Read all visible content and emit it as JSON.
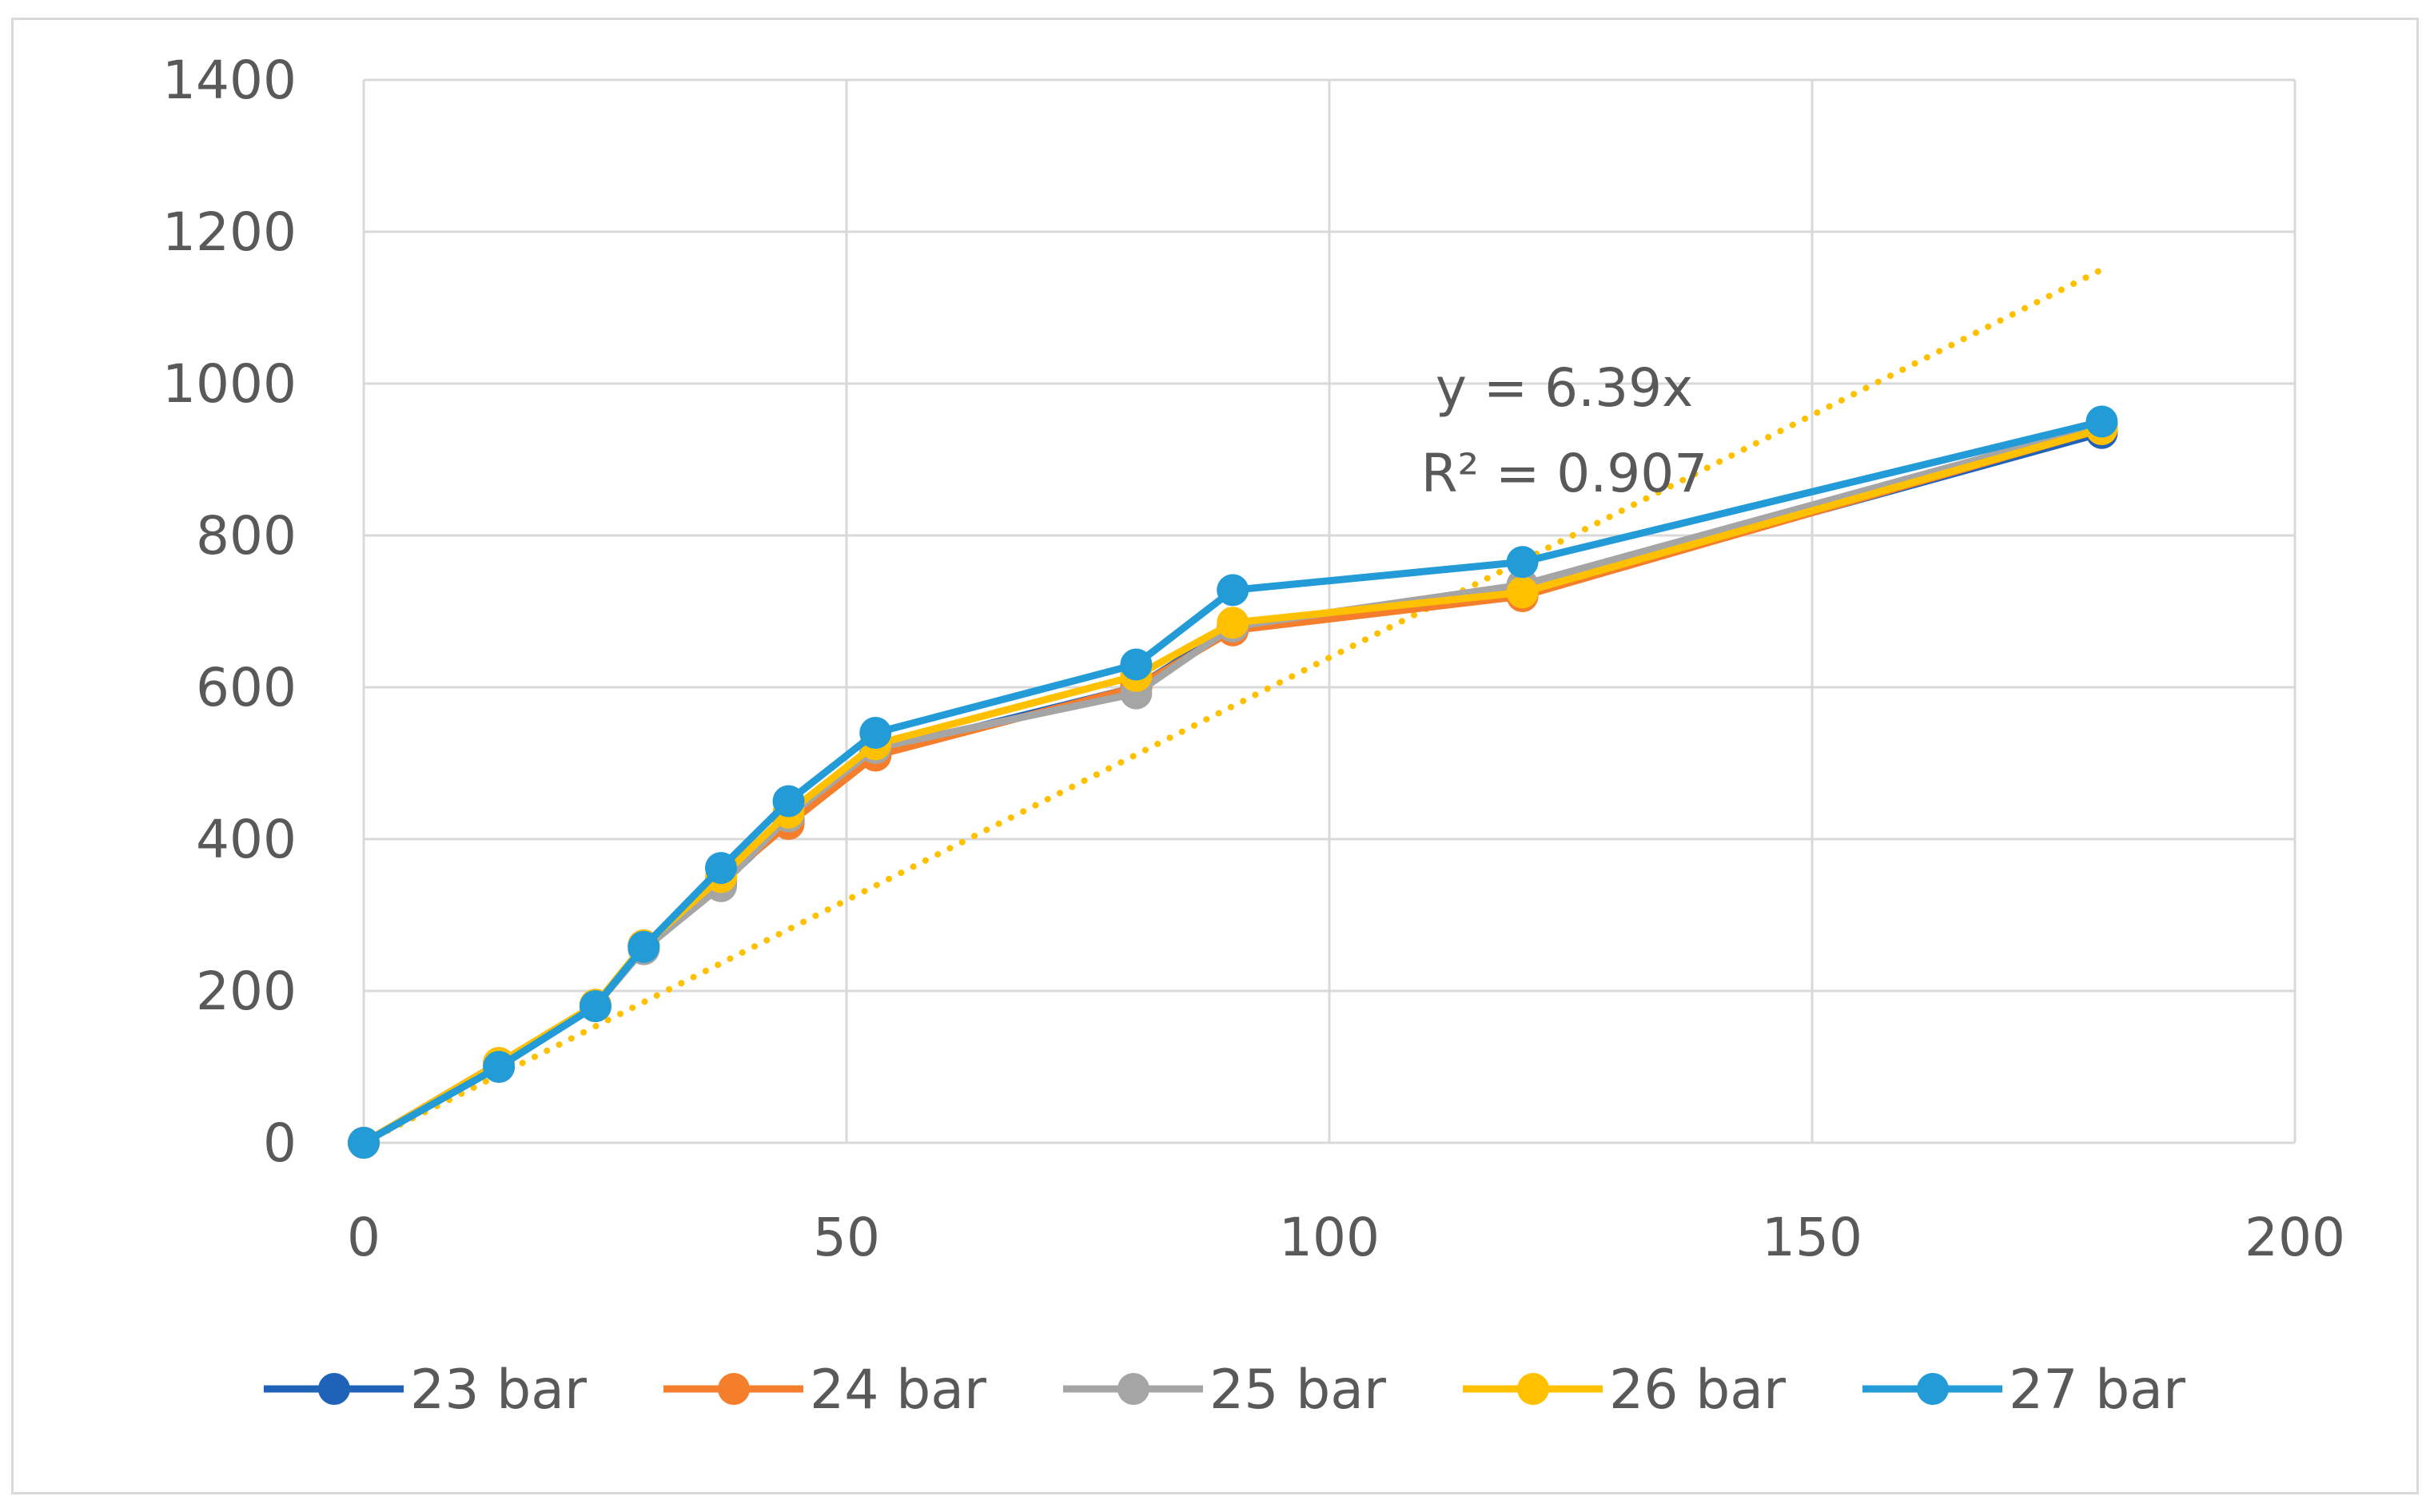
{
  "chart_data": {
    "type": "line",
    "title": "",
    "xlabel": "",
    "ylabel": "",
    "xlim": [
      0,
      200
    ],
    "ylim": [
      0,
      1400
    ],
    "x_ticks": [
      0,
      50,
      100,
      150,
      200
    ],
    "y_ticks": [
      0,
      200,
      400,
      600,
      800,
      1000,
      1200,
      1400
    ],
    "grid": true,
    "legend_position": "bottom",
    "x": [
      0,
      14,
      24,
      29,
      37,
      44,
      53,
      80,
      90,
      120,
      180
    ],
    "series": [
      {
        "name": "23 bar",
        "color": "#1F63B8",
        "values": [
          0,
          105,
          180,
          260,
          340,
          425,
          515,
          600,
          680,
          725,
          935
        ]
      },
      {
        "name": "24 bar",
        "color": "#F57E2C",
        "values": [
          0,
          105,
          180,
          258,
          345,
          420,
          510,
          600,
          675,
          720,
          940
        ]
      },
      {
        "name": "25 bar",
        "color": "#A5A5A5",
        "values": [
          0,
          100,
          180,
          255,
          338,
          430,
          520,
          592,
          680,
          735,
          945
        ]
      },
      {
        "name": "26 bar",
        "color": "#FFC000",
        "values": [
          0,
          105,
          182,
          260,
          350,
          435,
          525,
          615,
          685,
          725,
          940
        ]
      },
      {
        "name": "27 bar",
        "color": "#239BD7",
        "values": [
          0,
          100,
          180,
          258,
          362,
          450,
          540,
          630,
          728,
          765,
          950
        ]
      }
    ],
    "trendline": {
      "series": "26 bar",
      "color": "#FFC000",
      "slope": 6.39,
      "x_range": [
        0,
        180
      ],
      "equation": "y = 6.39x",
      "r_squared": "R² = 0.907"
    }
  }
}
